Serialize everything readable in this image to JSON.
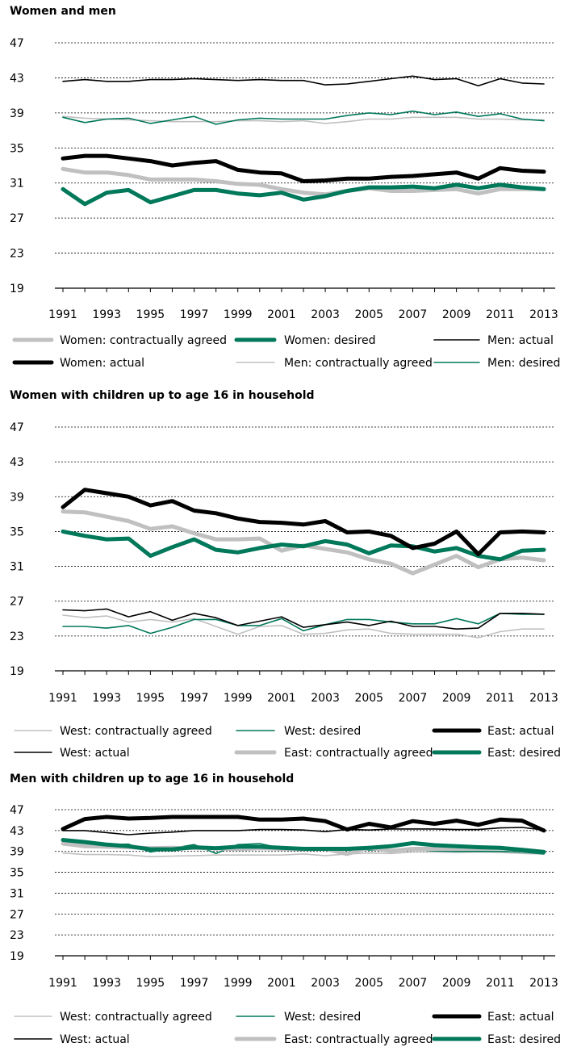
{
  "chart_data": [
    {
      "type": "line",
      "title": "Women and men",
      "ylim": [
        19,
        47
      ],
      "yticks": [
        19,
        23,
        27,
        31,
        35,
        39,
        43,
        47
      ],
      "grid": true,
      "x": [
        1991,
        1992,
        1993,
        1994,
        1995,
        1996,
        1997,
        1998,
        1999,
        2000,
        2001,
        2002,
        2003,
        2004,
        2005,
        2006,
        2007,
        2008,
        2009,
        2010,
        2011,
        2012,
        2013
      ],
      "xtick_labels": [
        "1991",
        "1993",
        "1995",
        "1997",
        "1999",
        "2001",
        "2003",
        "2005",
        "2007",
        "2009",
        "2011",
        "2013"
      ],
      "series": [
        {
          "name": "Women: contractually agreed",
          "color": "#c0c0c0",
          "width": 5,
          "values": [
            32.6,
            32.2,
            32.2,
            31.9,
            31.4,
            31.4,
            31.4,
            31.2,
            30.9,
            30.8,
            30.3,
            29.9,
            29.7,
            30.1,
            30.4,
            30.1,
            30.1,
            30.2,
            30.3,
            29.8,
            30.3,
            30.3,
            30.3
          ]
        },
        {
          "name": "Women: desired",
          "color": "#00785a",
          "width": 5,
          "values": [
            30.3,
            28.6,
            29.9,
            30.2,
            28.8,
            29.5,
            30.2,
            30.2,
            29.8,
            29.6,
            29.9,
            29.1,
            29.5,
            30.1,
            30.5,
            30.5,
            30.6,
            30.4,
            30.8,
            30.4,
            30.8,
            30.5,
            30.3
          ]
        },
        {
          "name": "Men: actual",
          "color": "#000000",
          "width": 1.6,
          "values": [
            42.6,
            42.8,
            42.6,
            42.6,
            42.8,
            42.8,
            42.9,
            42.8,
            42.7,
            42.8,
            42.7,
            42.7,
            42.2,
            42.3,
            42.6,
            42.9,
            43.2,
            42.8,
            42.9,
            42.1,
            42.9,
            42.4,
            42.3
          ]
        },
        {
          "name": "Women: actual",
          "color": "#000000",
          "width": 5,
          "values": [
            33.8,
            34.1,
            34.1,
            33.8,
            33.5,
            33.0,
            33.3,
            33.5,
            32.5,
            32.2,
            32.1,
            31.2,
            31.3,
            31.5,
            31.5,
            31.7,
            31.8,
            32.0,
            32.2,
            31.5,
            32.7,
            32.4,
            32.3
          ]
        },
        {
          "name": "Men: contractually agreed",
          "color": "#c0c0c0",
          "width": 1.6,
          "values": [
            38.6,
            38.4,
            38.3,
            38.2,
            38.1,
            38.0,
            38.0,
            38.0,
            38.1,
            38.1,
            38.0,
            38.1,
            37.8,
            38.0,
            38.3,
            38.3,
            38.5,
            38.5,
            38.5,
            38.3,
            38.3,
            38.2,
            38.2
          ]
        },
        {
          "name": "Men: desired",
          "color": "#00785a",
          "width": 1.6,
          "values": [
            38.5,
            37.9,
            38.3,
            38.4,
            37.8,
            38.2,
            38.6,
            37.7,
            38.2,
            38.4,
            38.3,
            38.3,
            38.3,
            38.7,
            39.0,
            38.8,
            39.2,
            38.8,
            39.1,
            38.6,
            38.9,
            38.3,
            38.1
          ]
        }
      ]
    },
    {
      "type": "line",
      "title": "Women with children up to age 16 in household",
      "ylim": [
        19,
        47
      ],
      "yticks": [
        19,
        23,
        27,
        31,
        35,
        39,
        43,
        47
      ],
      "grid": true,
      "x": [
        1991,
        1992,
        1993,
        1994,
        1995,
        1996,
        1997,
        1998,
        1999,
        2000,
        2001,
        2002,
        2003,
        2004,
        2005,
        2006,
        2007,
        2008,
        2009,
        2010,
        2011,
        2012,
        2013
      ],
      "xtick_labels": [
        "1991",
        "1993",
        "1995",
        "1997",
        "1999",
        "2001",
        "2003",
        "2005",
        "2007",
        "2009",
        "2011",
        "2013"
      ],
      "series": [
        {
          "name": "West: contractually agreed",
          "color": "#c0c0c0",
          "width": 1.6,
          "values": [
            25.4,
            25.1,
            25.3,
            24.6,
            24.9,
            24.6,
            25.0,
            24.1,
            23.2,
            24.1,
            24.2,
            23.2,
            23.3,
            23.7,
            23.8,
            23.3,
            23.2,
            23.2,
            23.2,
            22.8,
            23.5,
            23.8,
            23.8
          ]
        },
        {
          "name": "West: desired",
          "color": "#00785a",
          "width": 1.6,
          "values": [
            24.1,
            24.1,
            23.9,
            24.2,
            23.3,
            24.0,
            24.9,
            24.9,
            24.2,
            24.2,
            25.0,
            23.6,
            24.3,
            24.9,
            24.9,
            24.6,
            24.4,
            24.4,
            25.0,
            24.4,
            25.6,
            25.5,
            25.5
          ]
        },
        {
          "name": "East: actual",
          "color": "#000000",
          "width": 5,
          "values": [
            37.8,
            39.8,
            39.4,
            39.0,
            38.0,
            38.5,
            37.4,
            37.1,
            36.5,
            36.1,
            36.0,
            35.8,
            36.2,
            34.9,
            35.0,
            34.5,
            33.1,
            33.6,
            35.0,
            32.4,
            34.9,
            35.0,
            34.9
          ]
        },
        {
          "name": "West: actual",
          "color": "#000000",
          "width": 1.6,
          "values": [
            26.0,
            25.9,
            26.1,
            25.2,
            25.8,
            24.8,
            25.6,
            25.1,
            24.2,
            24.7,
            25.2,
            24.0,
            24.3,
            24.6,
            24.2,
            24.7,
            24.1,
            24.1,
            23.8,
            23.9,
            25.6,
            25.6,
            25.5
          ]
        },
        {
          "name": "East: contractually agreed",
          "color": "#c0c0c0",
          "width": 5,
          "values": [
            37.3,
            37.2,
            36.7,
            36.2,
            35.3,
            35.6,
            34.8,
            34.1,
            34.1,
            34.2,
            32.8,
            33.4,
            33.0,
            32.6,
            31.8,
            31.3,
            30.2,
            31.2,
            32.2,
            30.9,
            31.8,
            32.0,
            31.7
          ]
        },
        {
          "name": "East: desired",
          "color": "#00785a",
          "width": 5,
          "values": [
            35.0,
            34.5,
            34.1,
            34.2,
            32.2,
            33.2,
            34.1,
            32.9,
            32.6,
            33.1,
            33.5,
            33.3,
            33.9,
            33.5,
            32.5,
            33.4,
            33.3,
            32.7,
            33.1,
            32.2,
            31.8,
            32.8,
            32.9
          ]
        }
      ]
    },
    {
      "type": "line",
      "title": "Men with children up to age 16 in household",
      "ylim": [
        19,
        47
      ],
      "yticks": [
        19,
        23,
        27,
        31,
        35,
        39,
        43,
        47
      ],
      "grid": true,
      "x": [
        1991,
        1992,
        1993,
        1994,
        1995,
        1996,
        1997,
        1998,
        1999,
        2000,
        2001,
        2002,
        2003,
        2004,
        2005,
        2006,
        2007,
        2008,
        2009,
        2010,
        2011,
        2012,
        2013
      ],
      "xtick_labels": [
        "1991",
        "1993",
        "1995",
        "1997",
        "1999",
        "2001",
        "2003",
        "2005",
        "2007",
        "2009",
        "2011",
        "2013"
      ],
      "series": [
        {
          "name": "West: contractually agreed",
          "color": "#c0c0c0",
          "width": 1.6,
          "values": [
            38.7,
            38.4,
            38.4,
            38.3,
            38.0,
            38.1,
            38.2,
            38.3,
            38.3,
            38.3,
            38.3,
            38.5,
            38.2,
            38.5,
            38.7,
            38.6,
            38.9,
            38.9,
            38.8,
            38.9,
            38.8,
            38.6,
            38.5
          ]
        },
        {
          "name": "West: desired",
          "color": "#00785a",
          "width": 1.6,
          "values": [
            41.0,
            40.5,
            40.3,
            40.4,
            38.9,
            39.6,
            40.3,
            38.6,
            40.3,
            40.5,
            39.6,
            39.7,
            39.5,
            39.2,
            39.3,
            39.1,
            39.4,
            39.1,
            39.0,
            39.0,
            39.0,
            38.9,
            38.5
          ]
        },
        {
          "name": "East: actual",
          "color": "#000000",
          "width": 5,
          "values": [
            43.3,
            45.2,
            45.6,
            45.3,
            45.4,
            45.6,
            45.6,
            45.6,
            45.6,
            45.1,
            45.1,
            45.3,
            44.8,
            43.2,
            44.3,
            43.6,
            44.8,
            44.3,
            44.9,
            44.1,
            45.1,
            44.9,
            43.0
          ]
        },
        {
          "name": "West: actual",
          "color": "#000000",
          "width": 1.6,
          "values": [
            43.0,
            43.0,
            42.6,
            42.2,
            42.5,
            42.7,
            43.0,
            43.0,
            43.0,
            43.2,
            43.2,
            43.1,
            42.8,
            43.2,
            43.1,
            43.3,
            43.3,
            43.3,
            43.2,
            43.2,
            43.5,
            43.6,
            43.1
          ]
        },
        {
          "name": "East: contractually agreed",
          "color": "#c0c0c0",
          "width": 5,
          "values": [
            40.5,
            40.0,
            39.9,
            39.8,
            39.6,
            39.7,
            39.6,
            39.6,
            39.4,
            39.6,
            39.5,
            39.4,
            39.5,
            38.5,
            39.7,
            39.1,
            39.5,
            39.5,
            39.5,
            39.5,
            39.6,
            39.3,
            38.9
          ]
        },
        {
          "name": "East: desired",
          "color": "#00785a",
          "width": 5,
          "values": [
            41.2,
            40.8,
            40.3,
            40.0,
            39.4,
            39.4,
            39.8,
            39.6,
            39.9,
            39.9,
            39.7,
            39.5,
            39.5,
            39.5,
            39.7,
            40.0,
            40.6,
            40.2,
            40.0,
            39.8,
            39.7,
            39.3,
            38.9
          ]
        }
      ]
    }
  ]
}
